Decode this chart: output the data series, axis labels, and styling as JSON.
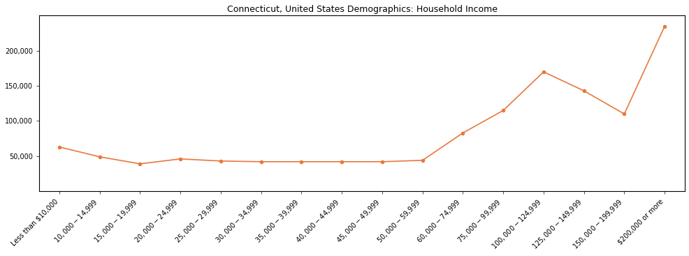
{
  "title": "Connecticut, United States Demographics: Household Income",
  "categories": [
    "Less than $10,000",
    "$10,000 - $14,999",
    "$15,000 - $19,999",
    "$20,000 - $24,999",
    "$25,000 - $29,999",
    "$30,000 - $34,999",
    "$35,000 - $39,999",
    "$40,000 - $44,999",
    "$45,000 - $49,999",
    "$50,000 - $59,999",
    "$60,000 - $74,999",
    "$75,000 - $99,999",
    "$100,000 - $124,999",
    "$125,000 - $149,999",
    "$150,000 - $199,999",
    "$200,000 or more"
  ],
  "values": [
    63000,
    49000,
    39000,
    46000,
    43000,
    42000,
    42000,
    42000,
    42000,
    44000,
    83000,
    115000,
    170000,
    143000,
    110000,
    235000
  ],
  "line_color": "#E8783C",
  "marker_color": "#E8783C",
  "background_color": "#ffffff",
  "title_fontsize": 9,
  "tick_fontsize": 7,
  "ylim": [
    0,
    250000
  ],
  "yticks": [
    50000,
    100000,
    150000,
    200000
  ]
}
